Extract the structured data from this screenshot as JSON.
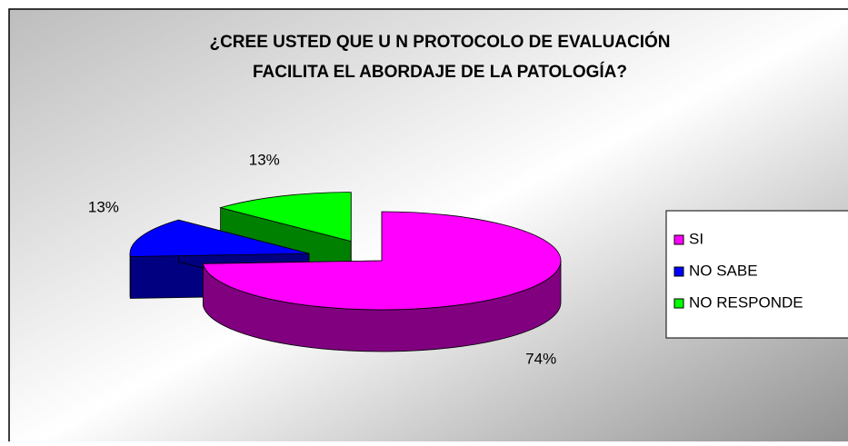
{
  "chart_data": {
    "type": "pie3d",
    "title": [
      "¿CREE USTED QUE U N PROTOCOLO DE EVALUACIÓN",
      "FACILITA EL ABORDAJE DE LA PATOLOGÍA?"
    ],
    "categories": [
      "SI",
      "NO SABE",
      "NO RESPONDE"
    ],
    "values": [
      74,
      13,
      13
    ],
    "value_labels": [
      "74%",
      "13%",
      "13%"
    ],
    "colors": [
      "#ff00ff",
      "#0000ff",
      "#00ff00"
    ],
    "side_colors": [
      "#800080",
      "#000080",
      "#008000"
    ],
    "exploded": [
      false,
      true,
      true
    ],
    "legend": "right"
  }
}
